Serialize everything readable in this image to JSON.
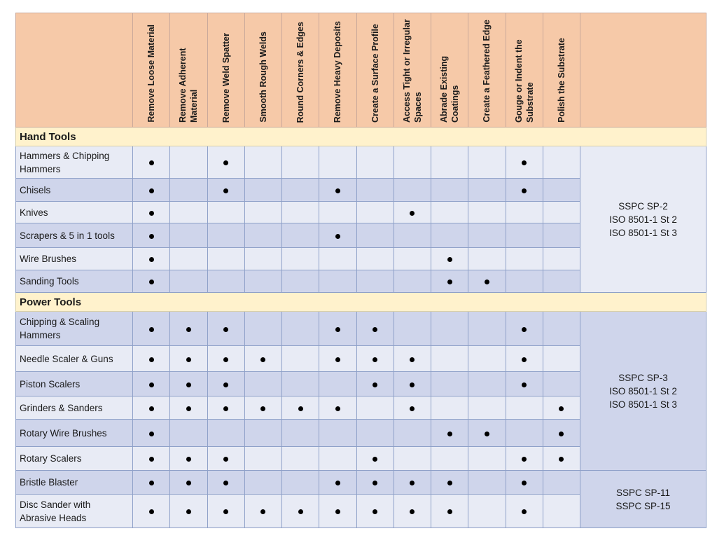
{
  "table": {
    "columns": [
      "Remove Loose Material",
      "Remove Adherent Material",
      "Remove Weld Spatter",
      "Smooth Rough Welds",
      "Round Corners & Edges",
      "Remove Heavy Deposits",
      "Create a Surface Profile",
      "Access Tight or Irregular Spaces",
      "Abrade Existing Coatings",
      "Create a Feathered Edge",
      "Gouge or Indent the Substrate",
      "Polish the Substrate"
    ],
    "mark_symbol": "●",
    "sections": [
      {
        "title": "Hand Tools",
        "standards": "SSPC SP-2\nISO 8501-1 St 2\nISO 8501-1 St 3",
        "rows": [
          {
            "tool": "Hammers & Chipping Hammers",
            "marks": [
              0,
              2,
              10
            ]
          },
          {
            "tool": "Chisels",
            "marks": [
              0,
              2,
              5,
              10
            ]
          },
          {
            "tool": "Knives",
            "marks": [
              0,
              7
            ]
          },
          {
            "tool": "Scrapers & 5 in 1 tools",
            "marks": [
              0,
              5
            ]
          },
          {
            "tool": "Wire Brushes",
            "marks": [
              0,
              8
            ]
          },
          {
            "tool": "Sanding Tools",
            "marks": [
              0,
              8,
              9
            ]
          }
        ]
      },
      {
        "title": "Power Tools",
        "standards": "SSPC SP-3\nISO 8501-1 St 2\nISO 8501-1 St 3",
        "rows": [
          {
            "tool": "Chipping & Scaling Hammers",
            "marks": [
              0,
              1,
              2,
              5,
              6,
              10
            ]
          },
          {
            "tool": "Needle Scaler & Guns",
            "marks": [
              0,
              1,
              2,
              3,
              5,
              6,
              7,
              10
            ]
          },
          {
            "tool": "Piston Scalers",
            "marks": [
              0,
              1,
              2,
              6,
              7,
              10
            ]
          },
          {
            "tool": "Grinders & Sanders",
            "marks": [
              0,
              1,
              2,
              3,
              4,
              5,
              7,
              11
            ]
          },
          {
            "tool": "Rotary Wire Brushes",
            "marks": [
              0,
              8,
              9,
              11
            ]
          },
          {
            "tool": "Rotary Scalers",
            "marks": [
              0,
              1,
              2,
              6,
              10,
              11
            ]
          }
        ]
      },
      {
        "title": "",
        "standards": "SSPC SP-11\nSSPC SP-15",
        "rows": [
          {
            "tool": "Bristle Blaster",
            "marks": [
              0,
              1,
              2,
              5,
              6,
              7,
              8,
              10
            ]
          },
          {
            "tool": "Disc Sander with Abrasive Heads",
            "marks": [
              0,
              1,
              2,
              3,
              4,
              5,
              6,
              7,
              8,
              10
            ]
          }
        ]
      }
    ]
  },
  "colors": {
    "header_bg": "#f6c9a8",
    "section_bg": "#fff2cc",
    "row_light": "#e8ebf5",
    "row_dark": "#cfd5eb",
    "grid": "#8ea0c8"
  }
}
